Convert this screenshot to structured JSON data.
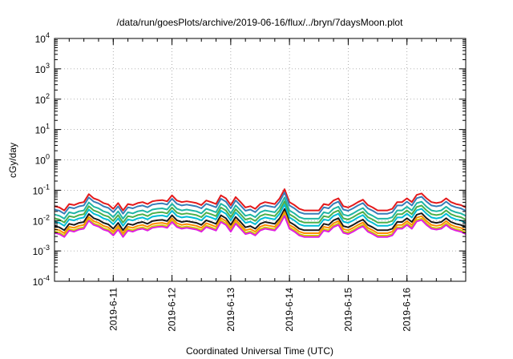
{
  "chart_data": {
    "type": "line",
    "title": "/data/run/goesPlots/archive/2019-06-16/flux/../bryn/7daysMoon.plot",
    "xlabel": "Coordinated Universal Time (UTC)",
    "ylabel": "cGy/day",
    "yscale": "log",
    "ylim": [
      0.0001,
      10000
    ],
    "y_ticks": [
      {
        "base": "10",
        "exp": "-4"
      },
      {
        "base": "10",
        "exp": "-3"
      },
      {
        "base": "10",
        "exp": "-2"
      },
      {
        "base": "10",
        "exp": "-1"
      },
      {
        "base": "10",
        "exp": "0"
      },
      {
        "base": "10",
        "exp": "1"
      },
      {
        "base": "10",
        "exp": "2"
      },
      {
        "base": "10",
        "exp": "3"
      },
      {
        "base": "10",
        "exp": "4"
      }
    ],
    "x_range": [
      "2019-06-10",
      "2019-06-17"
    ],
    "x_ticks": [
      "2019-6-11",
      "2019-6-12",
      "2019-6-13",
      "2019-6-14",
      "2019-6-15",
      "2019-6-16"
    ],
    "grid": true,
    "x_time_samples": [
      "2019-06-10 00:00",
      "2019-06-10 02:00",
      "2019-06-10 04:00",
      "2019-06-10 06:00",
      "2019-06-10 08:00",
      "2019-06-10 10:00",
      "2019-06-10 12:00",
      "2019-06-10 14:00",
      "2019-06-10 16:00",
      "2019-06-10 18:00",
      "2019-06-10 20:00",
      "2019-06-10 22:00",
      "2019-06-11 00:00",
      "2019-06-11 02:00",
      "2019-06-11 04:00",
      "2019-06-11 06:00",
      "2019-06-11 08:00",
      "2019-06-11 10:00",
      "2019-06-11 12:00",
      "2019-06-11 14:00",
      "2019-06-11 16:00",
      "2019-06-11 18:00",
      "2019-06-11 20:00",
      "2019-06-11 22:00",
      "2019-06-12 00:00",
      "2019-06-12 02:00",
      "2019-06-12 04:00",
      "2019-06-12 06:00",
      "2019-06-12 08:00",
      "2019-06-12 10:00",
      "2019-06-12 12:00",
      "2019-06-12 14:00",
      "2019-06-12 16:00",
      "2019-06-12 18:00",
      "2019-06-12 20:00",
      "2019-06-12 22:00",
      "2019-06-13 00:00",
      "2019-06-13 02:00",
      "2019-06-13 04:00",
      "2019-06-13 06:00",
      "2019-06-13 08:00",
      "2019-06-13 10:00",
      "2019-06-13 12:00",
      "2019-06-13 14:00",
      "2019-06-13 16:00",
      "2019-06-13 18:00",
      "2019-06-13 20:00",
      "2019-06-13 22:00",
      "2019-06-14 00:00",
      "2019-06-14 02:00",
      "2019-06-14 04:00",
      "2019-06-14 06:00",
      "2019-06-14 08:00",
      "2019-06-14 10:00",
      "2019-06-14 12:00",
      "2019-06-14 14:00",
      "2019-06-14 16:00",
      "2019-06-14 18:00",
      "2019-06-14 20:00",
      "2019-06-14 22:00",
      "2019-06-15 00:00",
      "2019-06-15 02:00",
      "2019-06-15 04:00",
      "2019-06-15 06:00",
      "2019-06-15 08:00",
      "2019-06-15 10:00",
      "2019-06-15 12:00",
      "2019-06-15 14:00",
      "2019-06-15 16:00",
      "2019-06-15 18:00",
      "2019-06-15 20:00",
      "2019-06-15 22:00",
      "2019-06-16 00:00",
      "2019-06-16 02:00",
      "2019-06-16 04:00",
      "2019-06-16 06:00",
      "2019-06-16 08:00",
      "2019-06-16 10:00",
      "2019-06-16 12:00",
      "2019-06-16 14:00",
      "2019-06-16 16:00",
      "2019-06-16 18:00",
      "2019-06-16 20:00",
      "2019-06-16 22:00",
      "2019-06-17 00:00"
    ],
    "base_profile": [
      0.022,
      0.02,
      0.016,
      0.026,
      0.024,
      0.028,
      0.03,
      0.055,
      0.04,
      0.035,
      0.028,
      0.025,
      0.018,
      0.028,
      0.016,
      0.026,
      0.024,
      0.028,
      0.03,
      0.026,
      0.032,
      0.034,
      0.035,
      0.032,
      0.05,
      0.034,
      0.03,
      0.032,
      0.03,
      0.028,
      0.024,
      0.034,
      0.03,
      0.026,
      0.05,
      0.04,
      0.024,
      0.044,
      0.03,
      0.02,
      0.022,
      0.018,
      0.026,
      0.03,
      0.028,
      0.026,
      0.04,
      0.08,
      0.03,
      0.024,
      0.018,
      0.016,
      0.016,
      0.016,
      0.016,
      0.026,
      0.024,
      0.034,
      0.04,
      0.022,
      0.02,
      0.024,
      0.03,
      0.036,
      0.024,
      0.02,
      0.016,
      0.016,
      0.016,
      0.018,
      0.03,
      0.03,
      0.04,
      0.03,
      0.052,
      0.058,
      0.04,
      0.03,
      0.028,
      0.03,
      0.04,
      0.03,
      0.026,
      0.024,
      0.02
    ],
    "series_multipliers": [
      1.35,
      1.05,
      0.72,
      0.54,
      0.42,
      0.3,
      0.24,
      0.2,
      0.18
    ],
    "series": [
      {
        "color": "#e41a1c"
      },
      {
        "color": "#377eb8"
      },
      {
        "color": "#1fb5a5"
      },
      {
        "color": "#4daf4a"
      },
      {
        "color": "#00bcd4"
      },
      {
        "color": "#1a1a1a"
      },
      {
        "color": "#ff8c00"
      },
      {
        "color": "#cccc00"
      },
      {
        "color": "#e020e0"
      }
    ]
  }
}
